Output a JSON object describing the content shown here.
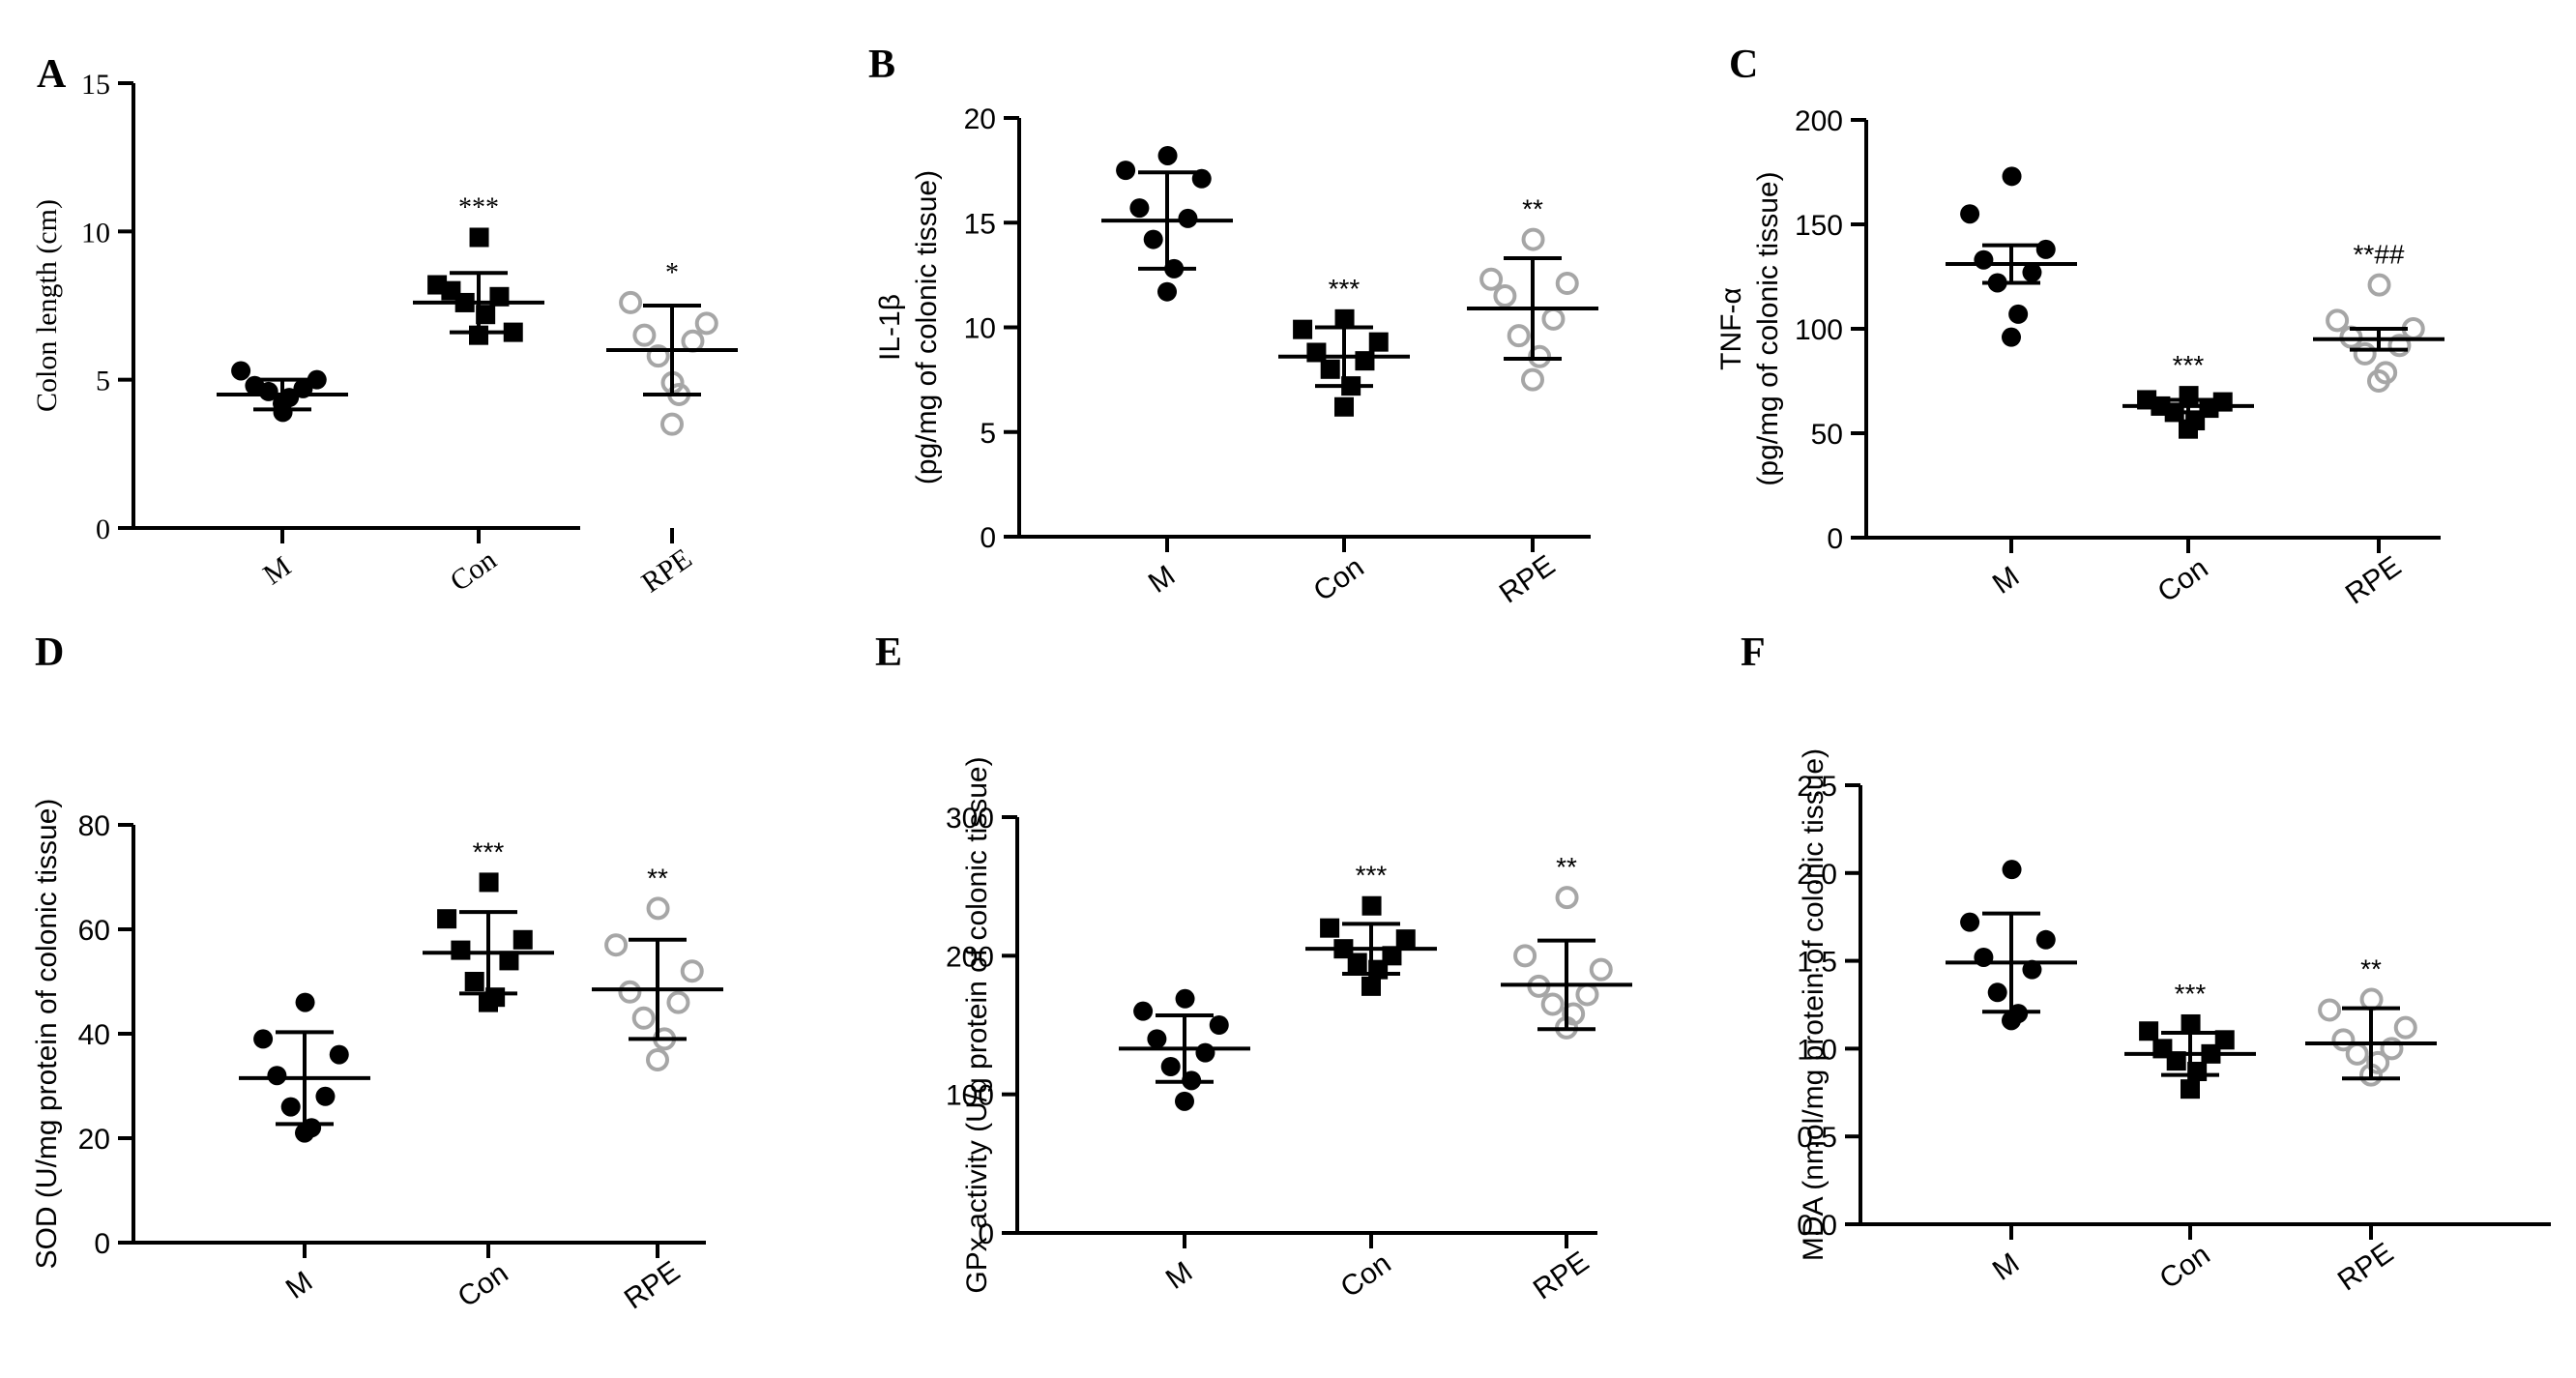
{
  "chart_data": [
    {
      "panel": "A",
      "type": "scatter",
      "title": "",
      "ylabel": "Colon length (cm)",
      "ylabel_lines": [
        "Colon length (cm)"
      ],
      "categories": [
        "M",
        "Con",
        "RPE"
      ],
      "ylim": [
        0,
        15
      ],
      "yticks": [
        0,
        5,
        10,
        15
      ],
      "ytick_labels": [
        "0",
        "5",
        "10",
        "15"
      ],
      "bar_type": "sd",
      "series": [
        {
          "name": "M",
          "values": [
            4.2,
            4.4,
            4.6,
            4.7,
            4.8,
            5.0,
            5.3,
            3.9
          ],
          "mean": 4.5,
          "err": 0.5,
          "sig": ""
        },
        {
          "name": "Con",
          "values": [
            6.5,
            7.2,
            7.6,
            7.8,
            8.0,
            6.6,
            8.2,
            9.8
          ],
          "mean": 7.6,
          "err": 1.0,
          "sig": "***"
        },
        {
          "name": "RPE",
          "values": [
            3.5,
            4.5,
            5.8,
            6.3,
            6.5,
            6.9,
            7.6,
            4.9
          ],
          "mean": 6.0,
          "err": 1.5,
          "sig": "*"
        }
      ]
    },
    {
      "panel": "B",
      "type": "scatter",
      "title": "",
      "ylabel": "IL-1β (pg/mg of colonic tissue)",
      "ylabel_lines": [
        "IL-1β",
        "(pg/mg of colonic tissue)"
      ],
      "categories": [
        "M",
        "Con",
        "RPE"
      ],
      "ylim": [
        0,
        20
      ],
      "yticks": [
        0,
        5,
        10,
        15,
        20
      ],
      "ytick_labels": [
        "0",
        "5",
        "10",
        "15",
        "20"
      ],
      "bar_type": "sd",
      "series": [
        {
          "name": "M",
          "values": [
            11.7,
            12.8,
            14.2,
            15.2,
            15.7,
            17.1,
            17.5,
            18.2
          ],
          "mean": 15.1,
          "err": 2.3,
          "sig": ""
        },
        {
          "name": "Con",
          "values": [
            6.2,
            7.2,
            8.0,
            8.4,
            8.8,
            9.3,
            9.9,
            10.4
          ],
          "mean": 8.6,
          "err": 1.4,
          "sig": "***"
        },
        {
          "name": "RPE",
          "values": [
            7.5,
            8.6,
            9.6,
            10.4,
            11.5,
            12.1,
            12.3,
            14.2
          ],
          "mean": 10.9,
          "err": 2.4,
          "sig": "**"
        }
      ]
    },
    {
      "panel": "C",
      "type": "scatter",
      "title": "",
      "ylabel": "TNF-α (pg/mg of colonic tissue)",
      "ylabel_lines": [
        "TNF-α",
        "(pg/mg of colonic tissue)"
      ],
      "categories": [
        "M",
        "Con",
        "RPE"
      ],
      "ylim": [
        0,
        200
      ],
      "yticks": [
        0,
        50,
        100,
        150,
        200
      ],
      "ytick_labels": [
        "0",
        "50",
        "100",
        "150",
        "200"
      ],
      "bar_type": "sem",
      "series": [
        {
          "name": "M",
          "values": [
            96,
            107,
            122,
            127,
            133,
            138,
            155,
            173
          ],
          "mean": 131,
          "err": 9,
          "sig": ""
        },
        {
          "name": "Con",
          "values": [
            52,
            56,
            60,
            62,
            63,
            65,
            66,
            68
          ],
          "mean": 63,
          "err": 3,
          "sig": "***"
        },
        {
          "name": "RPE",
          "values": [
            75,
            79,
            88,
            92,
            96,
            100,
            104,
            121
          ],
          "mean": 95,
          "err": 5,
          "sig": "**##"
        }
      ]
    },
    {
      "panel": "D",
      "type": "scatter",
      "title": "",
      "ylabel": "SOD (U/mg protein of colonic tissue)",
      "ylabel_lines": [
        "SOD (U/mg protein of colonic tissue)"
      ],
      "categories": [
        "M",
        "Con",
        "RPE"
      ],
      "ylim": [
        0,
        80
      ],
      "yticks": [
        0,
        20,
        40,
        60,
        80
      ],
      "ytick_labels": [
        "0",
        "20",
        "40",
        "60",
        "80"
      ],
      "bar_type": "sd",
      "series": [
        {
          "name": "M",
          "values": [
            21,
            22,
            26,
            28,
            32,
            36,
            39,
            46
          ],
          "mean": 31.5,
          "err": 8.8,
          "sig": ""
        },
        {
          "name": "Con",
          "values": [
            46,
            47,
            50,
            54,
            56,
            58,
            62,
            69
          ],
          "mean": 55.5,
          "err": 7.8,
          "sig": "***"
        },
        {
          "name": "RPE",
          "values": [
            35,
            39,
            43,
            46,
            48,
            52,
            57,
            64
          ],
          "mean": 48.5,
          "err": 9.5,
          "sig": "**"
        }
      ]
    },
    {
      "panel": "E",
      "type": "scatter",
      "title": "",
      "ylabel": "GPx activity (U/g protein of colonic tissue)",
      "ylabel_lines": [
        "GPx activity (U/g protein of colonic tissue)"
      ],
      "categories": [
        "M",
        "Con",
        "RPE"
      ],
      "ylim": [
        0,
        300
      ],
      "yticks": [
        0,
        100,
        200,
        300
      ],
      "ytick_labels": [
        "0",
        "100",
        "200",
        "300"
      ],
      "bar_type": "sd",
      "series": [
        {
          "name": "M",
          "values": [
            95,
            110,
            120,
            130,
            140,
            150,
            160,
            169
          ],
          "mean": 133,
          "err": 24,
          "sig": ""
        },
        {
          "name": "Con",
          "values": [
            178,
            190,
            195,
            200,
            205,
            212,
            220,
            236
          ],
          "mean": 205,
          "err": 18,
          "sig": "***"
        },
        {
          "name": "RPE",
          "values": [
            148,
            158,
            165,
            172,
            178,
            190,
            200,
            242
          ],
          "mean": 179,
          "err": 32,
          "sig": "**"
        }
      ]
    },
    {
      "panel": "F",
      "type": "scatter",
      "title": "",
      "ylabel": "MDA (nmol/mg protein of colonic tissue)",
      "ylabel_lines": [
        "MDA (nmol/mg protein of colonic tissue)"
      ],
      "categories": [
        "M",
        "Con",
        "RPE"
      ],
      "ylim": [
        0,
        2.5
      ],
      "yticks": [
        0,
        0.5,
        1.0,
        1.5,
        2.0,
        2.5
      ],
      "ytick_labels": [
        "0.0",
        "0.5",
        "1.0",
        "1.5",
        "2.0",
        "2.5"
      ],
      "bar_type": "sd",
      "series": [
        {
          "name": "M",
          "values": [
            1.16,
            1.2,
            1.32,
            1.45,
            1.52,
            1.62,
            1.72,
            2.02
          ],
          "mean": 1.49,
          "err": 0.28,
          "sig": ""
        },
        {
          "name": "Con",
          "values": [
            0.77,
            0.87,
            0.93,
            0.97,
            1.0,
            1.05,
            1.1,
            1.14
          ],
          "mean": 0.97,
          "err": 0.12,
          "sig": "***"
        },
        {
          "name": "RPE",
          "values": [
            0.85,
            0.92,
            0.97,
            1.0,
            1.05,
            1.12,
            1.22,
            1.28
          ],
          "mean": 1.03,
          "err": 0.2,
          "sig": "**"
        }
      ]
    }
  ],
  "colors": {
    "group_m": "#000000",
    "group_con": "#000000",
    "group_rpe": "#a6a6a6",
    "axis": "#000000"
  }
}
